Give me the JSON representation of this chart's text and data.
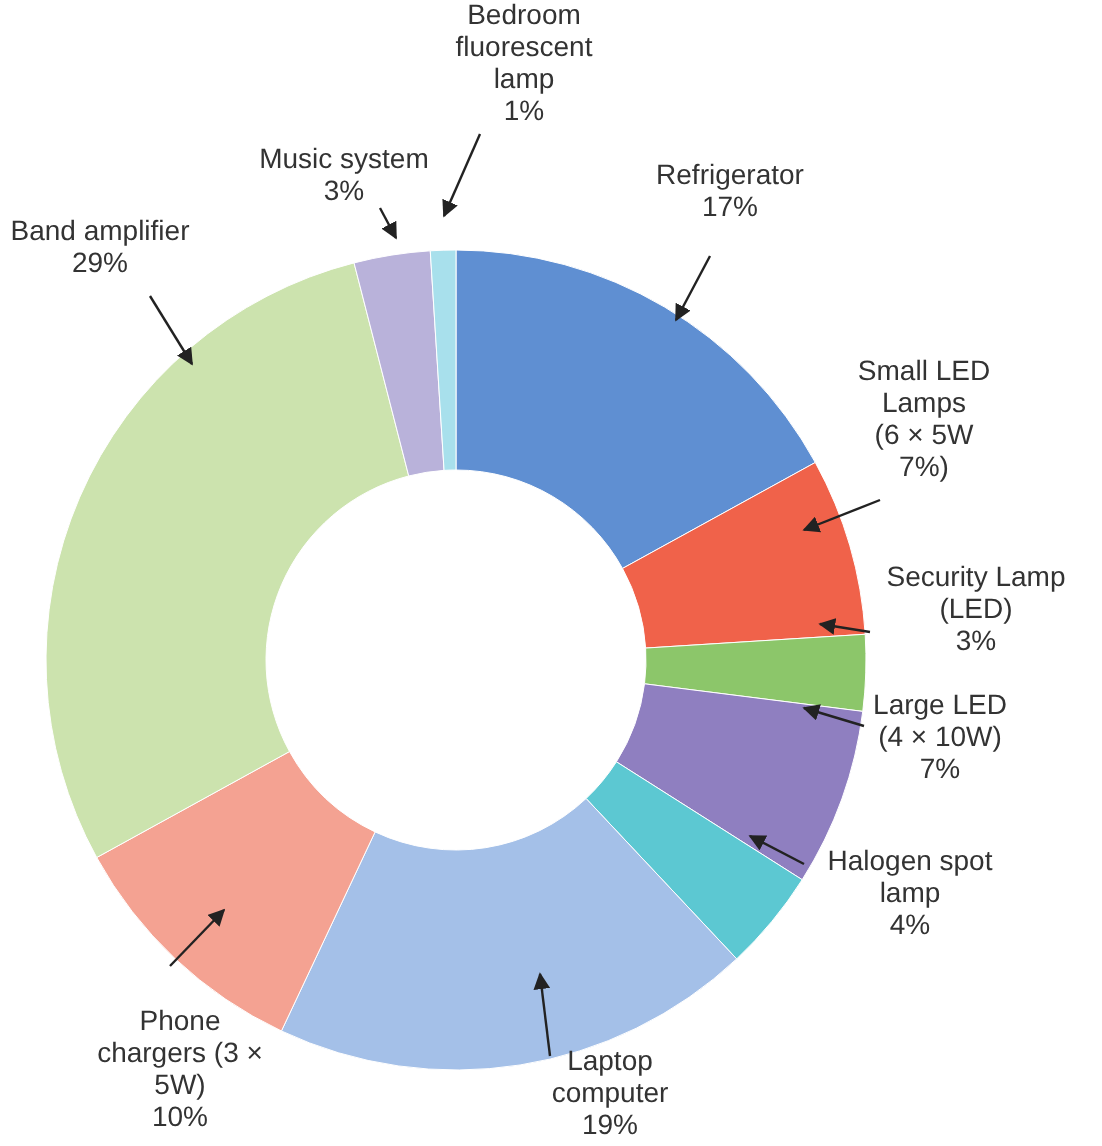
{
  "chart_data": {
    "type": "donut",
    "categories": [
      "Refrigerator",
      "Small LED Lamps (6 × 5W",
      "Security Lamp (LED)",
      "Large LED (4 × 10W)",
      "Halogen spot lamp",
      "Laptop computer",
      "Phone chargers (3 × 5W)",
      "Band amplifier",
      "Music system",
      "Bedroom fluorescent lamp"
    ],
    "values": [
      17,
      7,
      3,
      7,
      4,
      19,
      10,
      29,
      3,
      1
    ],
    "value_labels": [
      "17%",
      "7%)",
      "3%",
      "7%",
      "4%",
      "19%",
      "10%",
      "29%",
      "3%",
      "1%"
    ],
    "colors": [
      "#5f8fd2",
      "#f0624a",
      "#8cc66a",
      "#8f7fc0",
      "#5cc8d2",
      "#a4c0e8",
      "#f4a292",
      "#cce3ae",
      "#b9b2da",
      "#a8e0ec"
    ]
  }
}
